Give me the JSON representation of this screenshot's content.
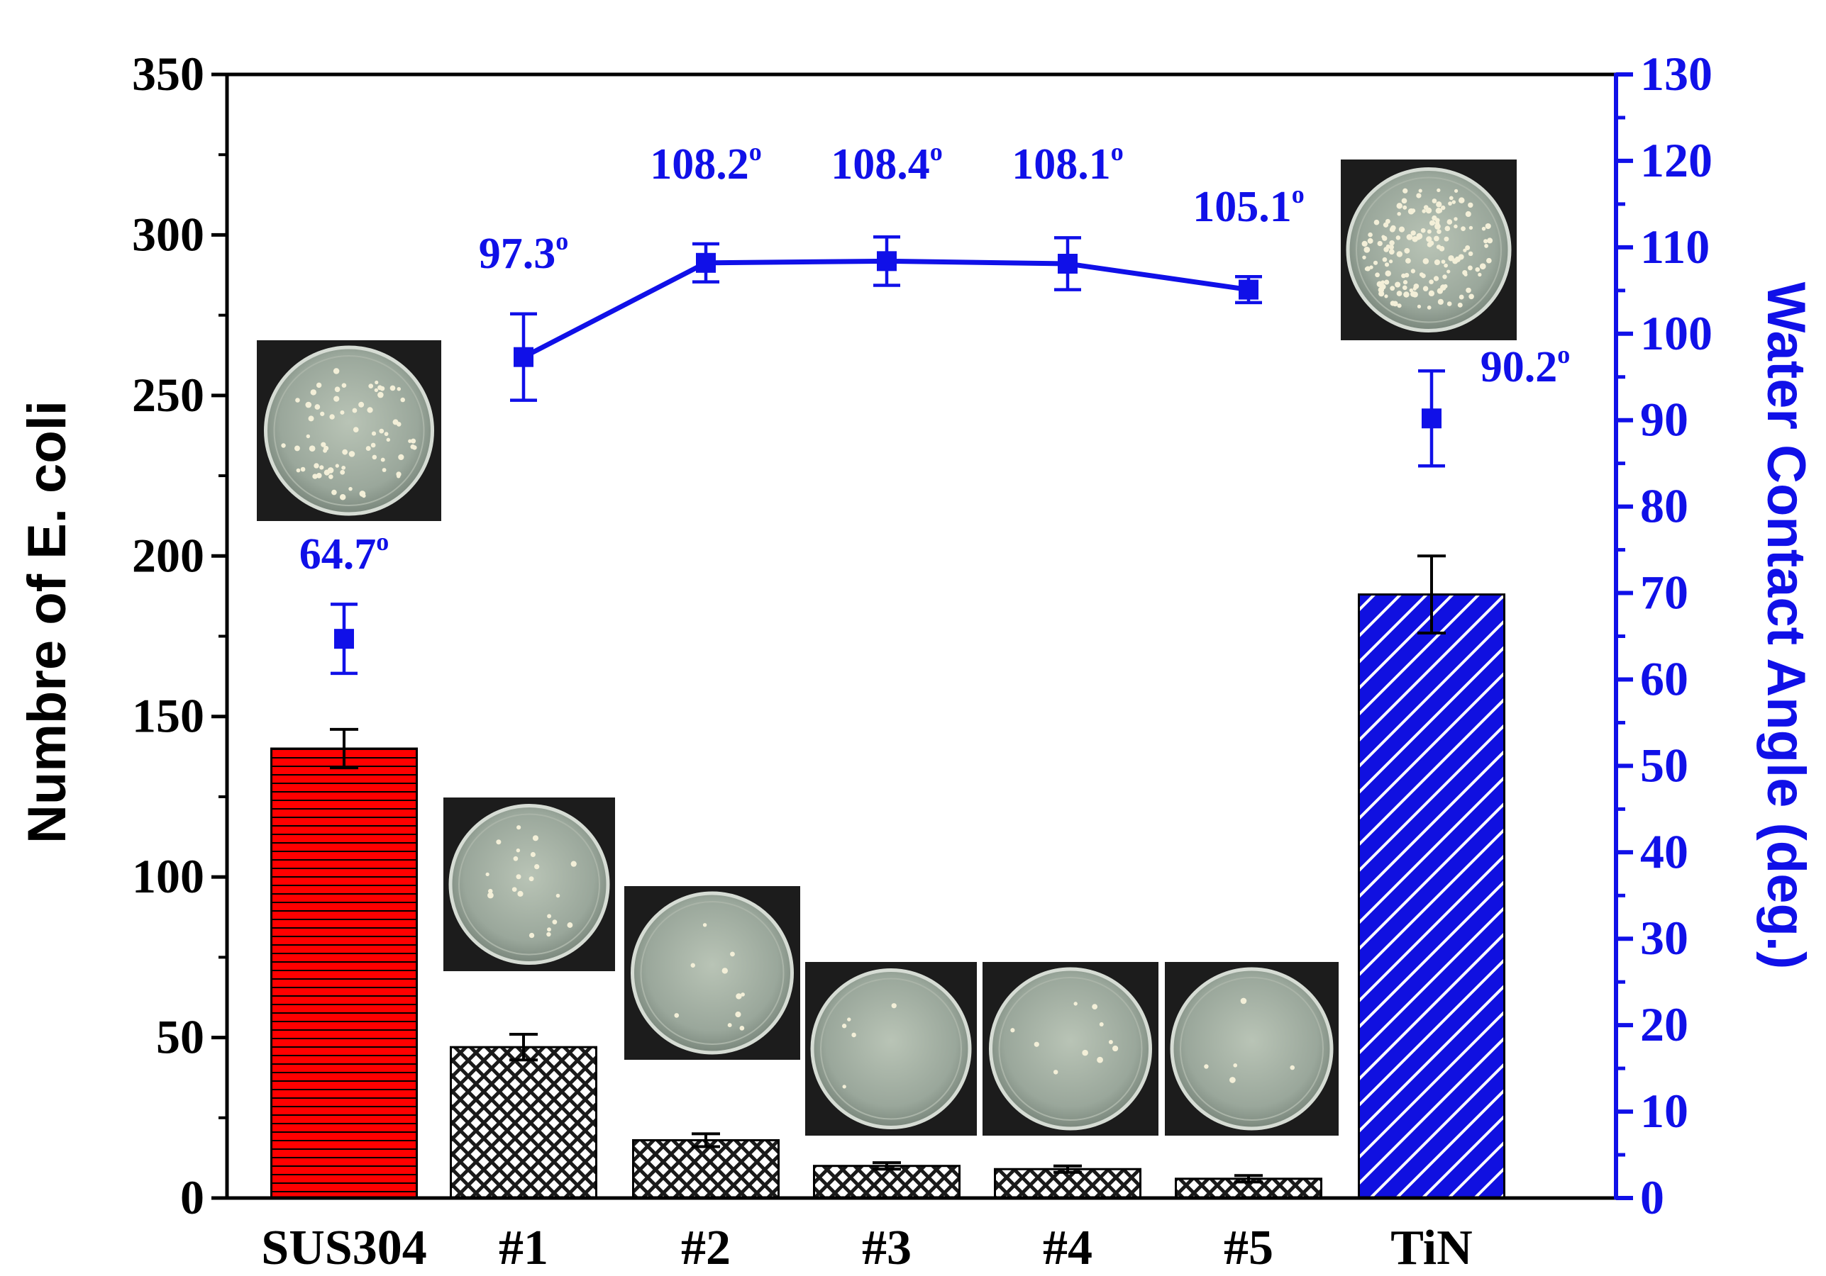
{
  "chart_data": {
    "type": "bar",
    "categories": [
      "SUS304",
      "#1",
      "#2",
      "#3",
      "#4",
      "#5",
      "TiN"
    ],
    "ylabel": "Numbre of E. coli",
    "y2label": "Water Contact Angle (deg.)",
    "ylim": [
      0,
      350
    ],
    "y2lim": [
      0,
      130
    ],
    "yticks": [
      0,
      50,
      100,
      150,
      200,
      250,
      300,
      350
    ],
    "y2ticks": [
      0,
      10,
      20,
      30,
      40,
      50,
      60,
      70,
      80,
      90,
      100,
      110,
      120,
      130
    ],
    "grid": false,
    "series": [
      {
        "type": "bar",
        "axis": "left",
        "values": [
          140,
          47,
          18,
          10,
          9,
          6,
          188
        ],
        "errors": [
          6,
          4,
          2,
          1,
          1,
          1,
          12
        ],
        "colors": [
          "#ff0000",
          "#1a1a1a",
          "#1a1a1a",
          "#1a1a1a",
          "#1a1a1a",
          "#1a1a1a",
          "#1010e0"
        ],
        "patterns": [
          "horizontal-lines",
          "crosshatch",
          "crosshatch",
          "crosshatch",
          "crosshatch",
          "crosshatch",
          "diagonal-lines"
        ]
      },
      {
        "type": "line",
        "axis": "right",
        "values": [
          64.7,
          97.3,
          108.2,
          108.4,
          108.1,
          105.1,
          90.2
        ],
        "errors": [
          4,
          5,
          2.2,
          2.8,
          3,
          1.5,
          5.5
        ],
        "connected": [
          false,
          true,
          true,
          true,
          true,
          true,
          false
        ],
        "labels": [
          "64.7",
          "97.3",
          "108.2",
          "108.4",
          "108.1",
          "105.1",
          "90.2"
        ],
        "label_suffix": "o",
        "color": "#1010e8"
      }
    ],
    "insets": [
      {
        "name": "petri-dish-photo-sus304",
        "colonies": 70
      },
      {
        "name": "petri-dish-photo-1",
        "colonies": 22
      },
      {
        "name": "petri-dish-photo-2",
        "colonies": 10
      },
      {
        "name": "petri-dish-photo-3",
        "colonies": 5
      },
      {
        "name": "petri-dish-photo-4",
        "colonies": 10
      },
      {
        "name": "petri-dish-photo-5",
        "colonies": 5
      },
      {
        "name": "petri-dish-photo-tin",
        "colonies": 150
      }
    ]
  }
}
